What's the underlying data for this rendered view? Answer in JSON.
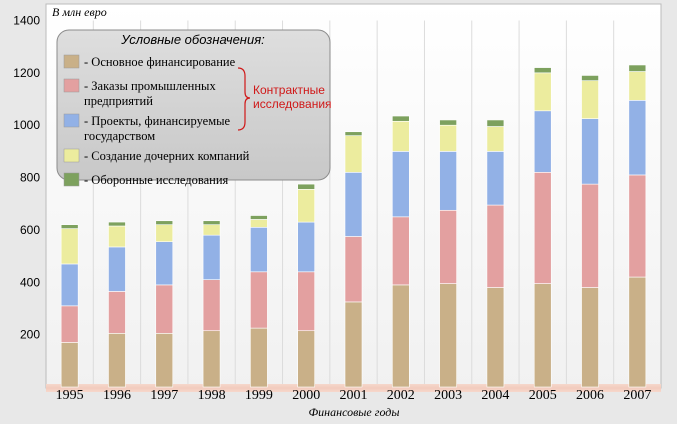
{
  "chart_data": {
    "type": "bar",
    "stacked": true,
    "ylabel": "В млн евро",
    "xlabel": "Финансовые годы",
    "ylim": [
      0,
      1400
    ],
    "yticks": [
      200,
      400,
      600,
      800,
      1000,
      1200,
      1400
    ],
    "grid": "vertical",
    "legend_position": "top-left",
    "categories": [
      "1995",
      "1996",
      "1997",
      "1998",
      "1999",
      "2000",
      "2001",
      "2002",
      "2003",
      "2004",
      "2005",
      "2006",
      "2007"
    ],
    "series": [
      {
        "name": "- Основное финансирование",
        "color": "#c9b088",
        "values": [
          170,
          205,
          205,
          215,
          225,
          215,
          325,
          390,
          395,
          380,
          395,
          380,
          420
        ]
      },
      {
        "name": "- Заказы промышленных предприятий",
        "color": "#e3a0a0",
        "values": [
          140,
          160,
          185,
          195,
          215,
          225,
          250,
          260,
          280,
          315,
          425,
          395,
          390
        ]
      },
      {
        "name": "- Проекты, финансируемые государством",
        "color": "#92b1e6",
        "values": [
          160,
          170,
          165,
          170,
          170,
          190,
          245,
          250,
          225,
          205,
          235,
          250,
          285
        ]
      },
      {
        "name": "- Создание дочерних компаний",
        "color": "#ecec9e",
        "values": [
          135,
          80,
          65,
          40,
          30,
          125,
          140,
          115,
          100,
          95,
          145,
          145,
          110
        ]
      },
      {
        "name": "- Оборонные исследования",
        "color": "#7da15e",
        "values": [
          15,
          15,
          15,
          15,
          15,
          20,
          15,
          20,
          20,
          25,
          20,
          20,
          25
        ]
      }
    ],
    "legend_title": "Условные обозначения:",
    "legend_lines": [
      [
        "- Основное финансирование"
      ],
      [
        "- Заказы промышленных",
        "предприятий"
      ],
      [
        "- Проекты, финансируемые",
        "государством"
      ],
      [
        "- Создание дочерних компаний"
      ],
      [
        "- Оборонные исследования"
      ]
    ],
    "annotation": [
      "Контрактные",
      "исследования"
    ]
  }
}
